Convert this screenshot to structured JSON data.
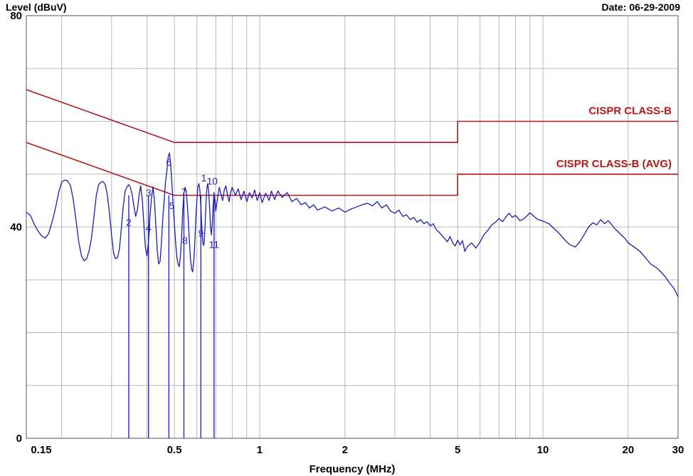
{
  "chart_data": {
    "type": "line",
    "ylabel": "Level (dBuV)",
    "xlabel": "Frequency (MHz)",
    "date": "Date: 06-29-2009",
    "x_scale": "log",
    "xlim": [
      0.15,
      30
    ],
    "ylim": [
      0,
      80
    ],
    "grid": true,
    "x_ticks": [
      {
        "v": 0.15,
        "label": "0.15"
      },
      {
        "v": 0.5,
        "label": "0.5"
      },
      {
        "v": 1,
        "label": "1"
      },
      {
        "v": 2,
        "label": "2"
      },
      {
        "v": 5,
        "label": "5"
      },
      {
        "v": 10,
        "label": "10"
      },
      {
        "v": 20,
        "label": "20"
      },
      {
        "v": 30,
        "label": "30"
      }
    ],
    "y_ticks": [
      {
        "v": 0,
        "label": "0"
      },
      {
        "v": 40,
        "label": "40"
      },
      {
        "v": 80,
        "label": "80"
      }
    ],
    "colors": {
      "limit": "#b01818",
      "trace": "#1c1cb4",
      "marker": "#2727b8",
      "grid": "#b8b8b8"
    },
    "limits": [
      {
        "name": "CISPR CLASS-B",
        "points": [
          [
            0.15,
            66
          ],
          [
            0.5,
            56
          ],
          [
            5,
            56
          ],
          [
            5,
            60
          ],
          [
            30,
            60
          ]
        ]
      },
      {
        "name": "CISPR CLASS-B (AVG)",
        "points": [
          [
            0.15,
            56
          ],
          [
            0.5,
            46
          ],
          [
            5,
            46
          ],
          [
            5,
            50
          ],
          [
            30,
            50
          ]
        ]
      }
    ],
    "series": [
      {
        "values": [
          [
            0.15,
            42.8
          ],
          [
            0.155,
            42.2
          ],
          [
            0.16,
            40.5
          ],
          [
            0.165,
            39.2
          ],
          [
            0.17,
            38.3
          ],
          [
            0.175,
            37.9
          ],
          [
            0.18,
            38.8
          ],
          [
            0.185,
            41.0
          ],
          [
            0.19,
            43.5
          ],
          [
            0.195,
            46.5
          ],
          [
            0.2,
            48.5
          ],
          [
            0.205,
            48.9
          ],
          [
            0.21,
            48.7
          ],
          [
            0.215,
            47.8
          ],
          [
            0.22,
            45.0
          ],
          [
            0.225,
            41.0
          ],
          [
            0.23,
            37.0
          ],
          [
            0.235,
            34.5
          ],
          [
            0.24,
            33.6
          ],
          [
            0.245,
            34.0
          ],
          [
            0.25,
            35.5
          ],
          [
            0.255,
            38.0
          ],
          [
            0.26,
            42.0
          ],
          [
            0.265,
            46.0
          ],
          [
            0.27,
            48.0
          ],
          [
            0.275,
            48.5
          ],
          [
            0.28,
            48.6
          ],
          [
            0.285,
            48.0
          ],
          [
            0.29,
            46.0
          ],
          [
            0.295,
            42.5
          ],
          [
            0.3,
            38.5
          ],
          [
            0.305,
            35.0
          ],
          [
            0.31,
            34.0
          ],
          [
            0.315,
            34.2
          ],
          [
            0.32,
            36.0
          ],
          [
            0.325,
            40.0
          ],
          [
            0.33,
            44.0
          ],
          [
            0.335,
            46.8
          ],
          [
            0.34,
            47.6
          ],
          [
            0.345,
            48.0
          ],
          [
            0.35,
            47.4
          ],
          [
            0.355,
            46.0
          ],
          [
            0.36,
            43.8
          ],
          [
            0.365,
            42.0
          ],
          [
            0.37,
            43.2
          ],
          [
            0.375,
            46.0
          ],
          [
            0.38,
            47.8
          ],
          [
            0.385,
            45.2
          ],
          [
            0.39,
            40.5
          ],
          [
            0.395,
            36.0
          ],
          [
            0.4,
            34.5
          ],
          [
            0.405,
            37.0
          ],
          [
            0.41,
            42.0
          ],
          [
            0.415,
            45.5
          ],
          [
            0.42,
            47.6
          ],
          [
            0.425,
            45.0
          ],
          [
            0.43,
            40.0
          ],
          [
            0.435,
            35.5
          ],
          [
            0.44,
            33.0
          ],
          [
            0.445,
            33.5
          ],
          [
            0.45,
            37.0
          ],
          [
            0.455,
            41.5
          ],
          [
            0.46,
            45.0
          ],
          [
            0.465,
            48.5
          ],
          [
            0.47,
            50.5
          ],
          [
            0.475,
            53.2
          ],
          [
            0.48,
            54.0
          ],
          [
            0.485,
            51.8
          ],
          [
            0.49,
            48.0
          ],
          [
            0.495,
            44.0
          ],
          [
            0.5,
            40.5
          ],
          [
            0.505,
            37.0
          ],
          [
            0.51,
            34.2
          ],
          [
            0.515,
            33.0
          ],
          [
            0.52,
            32.5
          ],
          [
            0.525,
            34.5
          ],
          [
            0.53,
            38.0
          ],
          [
            0.535,
            43.0
          ],
          [
            0.54,
            46.4
          ],
          [
            0.545,
            47.5
          ],
          [
            0.55,
            46.8
          ],
          [
            0.555,
            44.5
          ],
          [
            0.56,
            41.0
          ],
          [
            0.565,
            37.0
          ],
          [
            0.57,
            33.8
          ],
          [
            0.575,
            32.0
          ],
          [
            0.58,
            31.5
          ],
          [
            0.585,
            33.5
          ],
          [
            0.59,
            37.0
          ],
          [
            0.595,
            41.5
          ],
          [
            0.6,
            45.0
          ],
          [
            0.605,
            47.6
          ],
          [
            0.61,
            48.2
          ],
          [
            0.615,
            47.0
          ],
          [
            0.62,
            44.0
          ],
          [
            0.625,
            40.0
          ],
          [
            0.63,
            37.0
          ],
          [
            0.635,
            36.5
          ],
          [
            0.64,
            39.0
          ],
          [
            0.645,
            43.5
          ],
          [
            0.65,
            47.0
          ],
          [
            0.655,
            48.2
          ],
          [
            0.66,
            47.0
          ],
          [
            0.665,
            44.0
          ],
          [
            0.67,
            40.5
          ],
          [
            0.675,
            38.5
          ],
          [
            0.68,
            40.5
          ],
          [
            0.685,
            44.0
          ],
          [
            0.69,
            46.5
          ],
          [
            0.695,
            45.0
          ],
          [
            0.7,
            43.0
          ],
          [
            0.71,
            45.5
          ],
          [
            0.72,
            47.5
          ],
          [
            0.73,
            46.2
          ],
          [
            0.74,
            45.0
          ],
          [
            0.75,
            47.0
          ],
          [
            0.76,
            47.8
          ],
          [
            0.77,
            46.0
          ],
          [
            0.78,
            44.8
          ],
          [
            0.79,
            46.5
          ],
          [
            0.8,
            47.5
          ],
          [
            0.82,
            46.0
          ],
          [
            0.84,
            47.2
          ],
          [
            0.86,
            45.2
          ],
          [
            0.88,
            46.8
          ],
          [
            0.9,
            44.8
          ],
          [
            0.92,
            46.5
          ],
          [
            0.94,
            45.5
          ],
          [
            0.96,
            47.0
          ],
          [
            0.98,
            45.0
          ],
          [
            1.0,
            46.5
          ],
          [
            1.02,
            44.6
          ],
          [
            1.05,
            46.4
          ],
          [
            1.08,
            45.0
          ],
          [
            1.1,
            46.8
          ],
          [
            1.13,
            45.2
          ],
          [
            1.16,
            46.8
          ],
          [
            1.2,
            45.6
          ],
          [
            1.25,
            46.5
          ],
          [
            1.3,
            44.8
          ],
          [
            1.35,
            45.4
          ],
          [
            1.4,
            44.2
          ],
          [
            1.45,
            44.6
          ],
          [
            1.5,
            43.6
          ],
          [
            1.55,
            44.2
          ],
          [
            1.6,
            43.2
          ],
          [
            1.7,
            43.8
          ],
          [
            1.8,
            43.0
          ],
          [
            1.9,
            43.6
          ],
          [
            2.0,
            42.8
          ],
          [
            2.1,
            43.4
          ],
          [
            2.2,
            43.8
          ],
          [
            2.3,
            44.2
          ],
          [
            2.4,
            44.5
          ],
          [
            2.5,
            44.0
          ],
          [
            2.6,
            44.8
          ],
          [
            2.7,
            43.6
          ],
          [
            2.8,
            44.2
          ],
          [
            2.9,
            43.0
          ],
          [
            3.0,
            42.6
          ],
          [
            3.1,
            43.2
          ],
          [
            3.2,
            42.0
          ],
          [
            3.3,
            42.3
          ],
          [
            3.4,
            41.4
          ],
          [
            3.5,
            41.8
          ],
          [
            3.6,
            40.9
          ],
          [
            3.7,
            41.4
          ],
          [
            3.8,
            40.6
          ],
          [
            3.9,
            41.0
          ],
          [
            4.0,
            40.2
          ],
          [
            4.1,
            40.6
          ],
          [
            4.2,
            39.5
          ],
          [
            4.3,
            39.0
          ],
          [
            4.4,
            38.4
          ],
          [
            4.5,
            37.8
          ],
          [
            4.6,
            37.2
          ],
          [
            4.7,
            38.2
          ],
          [
            4.8,
            37.0
          ],
          [
            4.9,
            36.4
          ],
          [
            5.0,
            37.5
          ],
          [
            5.1,
            36.6
          ],
          [
            5.2,
            37.4
          ],
          [
            5.3,
            35.4
          ],
          [
            5.4,
            36.2
          ],
          [
            5.6,
            37.0
          ],
          [
            5.8,
            36.0
          ],
          [
            6.0,
            37.2
          ],
          [
            6.2,
            38.6
          ],
          [
            6.4,
            39.4
          ],
          [
            6.6,
            40.4
          ],
          [
            6.8,
            40.9
          ],
          [
            7.0,
            41.6
          ],
          [
            7.2,
            41.0
          ],
          [
            7.4,
            41.9
          ],
          [
            7.6,
            42.6
          ],
          [
            7.8,
            41.8
          ],
          [
            8.0,
            42.2
          ],
          [
            8.3,
            41.2
          ],
          [
            8.6,
            41.6
          ],
          [
            9.0,
            42.7
          ],
          [
            9.3,
            42.0
          ],
          [
            9.6,
            41.4
          ],
          [
            10.0,
            41.1
          ],
          [
            10.5,
            40.6
          ],
          [
            11.0,
            39.6
          ],
          [
            11.5,
            38.6
          ],
          [
            12.0,
            37.4
          ],
          [
            12.5,
            36.6
          ],
          [
            13.0,
            36.2
          ],
          [
            13.5,
            37.2
          ],
          [
            14.0,
            38.6
          ],
          [
            14.5,
            40.0
          ],
          [
            15.0,
            40.8
          ],
          [
            15.5,
            40.4
          ],
          [
            16.0,
            41.4
          ],
          [
            16.5,
            40.6
          ],
          [
            17.0,
            41.2
          ],
          [
            17.5,
            40.4
          ],
          [
            18.0,
            39.6
          ],
          [
            18.5,
            39.0
          ],
          [
            19.0,
            38.4
          ],
          [
            19.5,
            37.8
          ],
          [
            20.0,
            37.0
          ],
          [
            21.0,
            36.2
          ],
          [
            22.0,
            35.4
          ],
          [
            23.0,
            34.2
          ],
          [
            24.0,
            33.0
          ],
          [
            25.0,
            32.4
          ],
          [
            26.0,
            31.6
          ],
          [
            27.0,
            30.6
          ],
          [
            28.0,
            29.4
          ],
          [
            29.0,
            28.4
          ],
          [
            30.0,
            26.8
          ]
        ]
      }
    ],
    "markers": [
      {
        "label": "1",
        "f": 0.635,
        "level": 48.6,
        "drop": 2
      },
      {
        "label": "2",
        "f": 0.345,
        "level": 40.2,
        "drop": 0
      },
      {
        "label": "3",
        "f": 0.405,
        "level": 45.8,
        "drop": 0
      },
      {
        "label": "4",
        "f": 0.405,
        "level": 39.2,
        "drop": 0
      },
      {
        "label": "5",
        "f": 0.49,
        "level": 43.4,
        "drop": 0
      },
      {
        "label": "6",
        "f": 0.478,
        "level": 51.6,
        "drop": 0
      },
      {
        "label": "7",
        "f": 0.54,
        "level": 46.0,
        "drop": 22
      },
      {
        "label": "8",
        "f": 0.545,
        "level": 36.8,
        "drop": 0
      },
      {
        "label": "9",
        "f": 0.62,
        "level": 38.2,
        "drop": 0
      },
      {
        "label": "10",
        "f": 0.68,
        "level": 48.0,
        "drop": 0
      },
      {
        "label": "11",
        "f": 0.69,
        "level": 36.0,
        "drop": 0
      }
    ],
    "marker_lines": [
      0.345,
      0.405,
      0.478,
      0.54,
      0.62,
      0.69
    ]
  }
}
